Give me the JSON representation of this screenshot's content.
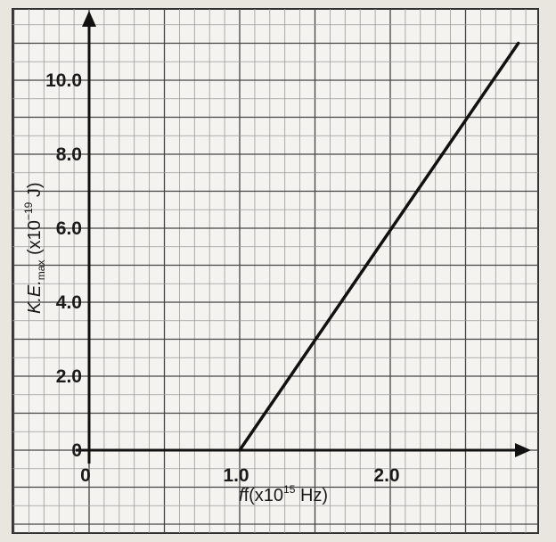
{
  "chart_data": {
    "type": "line",
    "xlabel": {
      "main": "f(x10",
      "exp": "15",
      "rest": " Hz)"
    },
    "ylabel": {
      "main": "K.E.",
      "sub": "max",
      "rest": " (x10",
      "exp": "−19",
      "tail": " J)"
    },
    "x_ticks": [
      {
        "value": 0,
        "label": "0"
      },
      {
        "value": 1.0,
        "label": "1.0"
      },
      {
        "value": 2.0,
        "label": "2.0"
      }
    ],
    "y_ticks": [
      {
        "value": 0,
        "label": "0"
      },
      {
        "value": 2.0,
        "label": "2.0"
      },
      {
        "value": 4.0,
        "label": "4.0"
      },
      {
        "value": 6.0,
        "label": "6.0"
      },
      {
        "value": 8.0,
        "label": "8.0"
      },
      {
        "value": 10.0,
        "label": "10.0"
      }
    ],
    "xlim": [
      0,
      2.95
    ],
    "ylim": [
      0,
      12.0
    ],
    "grid": true,
    "series": [
      {
        "x": [
          1.0,
          2.85
        ],
        "y": [
          0.0,
          11.0
        ]
      }
    ],
    "colors": {
      "paper": "#f4f3ef",
      "grid_major": "#444444",
      "grid_minor": "#9a9a9a",
      "line": "#111111"
    }
  }
}
